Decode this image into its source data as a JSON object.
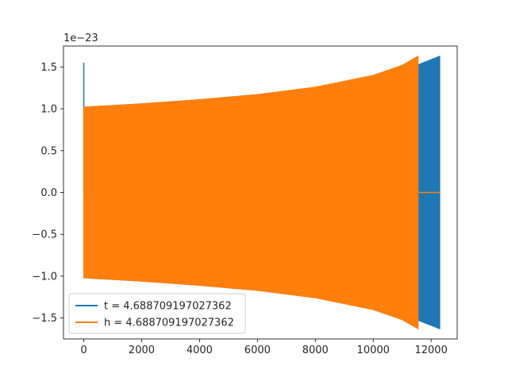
{
  "chart_data": {
    "type": "line",
    "offset_text": "1e−23",
    "xlim": [
      -700,
      12900
    ],
    "ylim": [
      -1.75,
      1.75
    ],
    "x_ticks": [
      0,
      2000,
      4000,
      6000,
      8000,
      10000,
      12000
    ],
    "x_tick_labels": [
      "0",
      "2000",
      "4000",
      "6000",
      "8000",
      "10000",
      "12000"
    ],
    "y_ticks": [
      -1.5,
      -1.0,
      -0.5,
      0.0,
      0.5,
      1.0,
      1.5
    ],
    "y_tick_labels": [
      "−1.5",
      "−1.0",
      "−0.5",
      "0.0",
      "0.5",
      "1.0",
      "1.5"
    ],
    "legend_position": "lower-left",
    "grid": false,
    "series": [
      {
        "name": "t = 4.688709197027362",
        "color": "#1f77b4",
        "spike": {
          "x": 0,
          "y": 1.55
        },
        "envelope": [
          {
            "x": 0,
            "amp": 1.02
          },
          {
            "x": 2000,
            "amp": 1.06
          },
          {
            "x": 4000,
            "amp": 1.11
          },
          {
            "x": 6000,
            "amp": 1.17
          },
          {
            "x": 8000,
            "amp": 1.25
          },
          {
            "x": 10000,
            "amp": 1.38
          },
          {
            "x": 11500,
            "amp": 1.52
          },
          {
            "x": 12300,
            "amp": 1.63
          }
        ]
      },
      {
        "name": "h = 4.688709197027362",
        "color": "#ff7f0e",
        "envelope": [
          {
            "x": 0,
            "amp": 1.02
          },
          {
            "x": 2000,
            "amp": 1.06
          },
          {
            "x": 4000,
            "amp": 1.11
          },
          {
            "x": 6000,
            "amp": 1.17
          },
          {
            "x": 8000,
            "amp": 1.26
          },
          {
            "x": 10000,
            "amp": 1.4
          },
          {
            "x": 11000,
            "amp": 1.52
          },
          {
            "x": 11550,
            "amp": 1.63
          }
        ],
        "zero_segment": {
          "x_start": 11550,
          "x_end": 12300
        }
      }
    ]
  }
}
